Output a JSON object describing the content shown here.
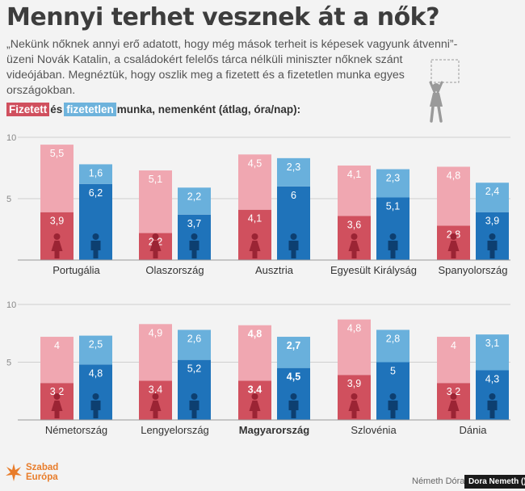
{
  "title": "Mennyi terhet vesznek át a nők?",
  "subtitle": "„Nekünk nőknek annyi erő adatott, hogy még mások terheit is képesek vagyunk átvenni”-üzeni Novák Katalin, a családokért felelős tárca nélküli miniszter nőknek szánt videójában. Megnéztük, hogy oszlik meg a fizetett és a fizetetlen munka egyes országokban.",
  "legend": {
    "paid": "Fizetett",
    "and": "és",
    "unpaid": "fizetetlen",
    "rest": "munka, nemenként (átlag, óra/nap):"
  },
  "colors": {
    "women_paid": "#d0505e",
    "women_unpaid": "#f0a7b1",
    "men_paid": "#1f73ba",
    "men_unpaid": "#69b0dc",
    "axis": "#999999"
  },
  "chart_data": [
    {
      "type": "bar",
      "stacked": true,
      "ylim": [
        0,
        10
      ],
      "yticks": [
        5,
        10
      ],
      "categories": [
        "Portugália",
        "Olaszország",
        "Ausztria",
        "Egyesült Királyság",
        "Spanyolország"
      ],
      "highlight": [],
      "series": [
        {
          "name": "Fizetett",
          "group": "nők",
          "values": [
            3.9,
            2.2,
            4.1,
            3.6,
            2.8
          ]
        },
        {
          "name": "fizetetlen",
          "group": "nők",
          "values": [
            5.5,
            5.1,
            4.5,
            4.1,
            4.8
          ]
        },
        {
          "name": "Fizetett",
          "group": "férfiak",
          "values": [
            6.2,
            3.7,
            6,
            5.1,
            3.9
          ]
        },
        {
          "name": "fizetetlen",
          "group": "férfiak",
          "values": [
            1.6,
            2.2,
            2.3,
            2.3,
            2.4
          ]
        }
      ]
    },
    {
      "type": "bar",
      "stacked": true,
      "ylim": [
        0,
        10
      ],
      "yticks": [
        5,
        10
      ],
      "categories": [
        "Németország",
        "Lengyelország",
        "Magyarország",
        "Szlovénia",
        "Dánia"
      ],
      "highlight": [
        "Magyarország"
      ],
      "series": [
        {
          "name": "Fizetett",
          "group": "nők",
          "values": [
            3.2,
            3.4,
            3.4,
            3.9,
            3.2
          ]
        },
        {
          "name": "fizetetlen",
          "group": "nők",
          "values": [
            4,
            4.9,
            4.8,
            4.8,
            4
          ]
        },
        {
          "name": "Fizetett",
          "group": "férfiak",
          "values": [
            4.8,
            5.2,
            4.5,
            5,
            4.3
          ]
        },
        {
          "name": "fizetetlen",
          "group": "férfiak",
          "values": [
            2.5,
            2.6,
            2.7,
            2.8,
            3.1
          ]
        }
      ]
    }
  ],
  "logo": {
    "line1": "Szabad",
    "line2": "Európa"
  },
  "credit": "Németh Dóra",
  "watermark": "Dora Nemeth ()"
}
